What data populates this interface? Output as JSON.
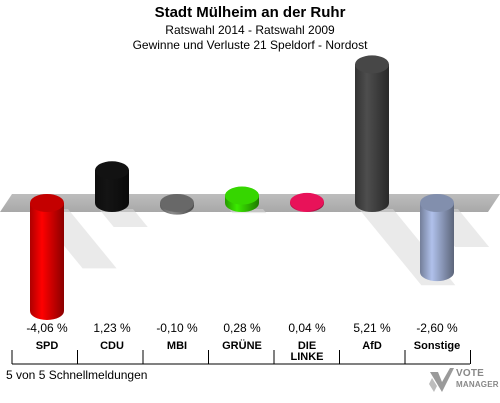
{
  "chart_data": {
    "type": "bar",
    "title": "Stadt Mülheim an der Ruhr",
    "subtitle": "Ratswahl 2014 - Ratswahl 2009",
    "subtitle2": "Gewinne und Verluste 21 Speldorf - Nordost",
    "categories": [
      "SPD",
      "CDU",
      "MBI",
      "GRÜNE",
      "DIE LINKE",
      "AfD",
      "Sonstige"
    ],
    "values": [
      -4.06,
      1.23,
      -0.1,
      0.28,
      0.04,
      5.21,
      -2.6
    ],
    "value_labels": [
      "-4,06 %",
      "1,23 %",
      "-0,10 %",
      "0,28 %",
      "0,04 %",
      "5,21 %",
      "-2,60 %"
    ],
    "colors": [
      "#e60000",
      "#111111",
      "#7a7a7a",
      "#33cc00",
      "#dd1155",
      "#444444",
      "#99a8cc"
    ],
    "xlabel": "",
    "ylabel": ""
  },
  "footer": {
    "note": "5 von 5 Schnellmeldungen",
    "logo_line1": "VOTE",
    "logo_line2": "MANAGER"
  },
  "icons": {
    "logo": "votemanager-logo-icon"
  }
}
